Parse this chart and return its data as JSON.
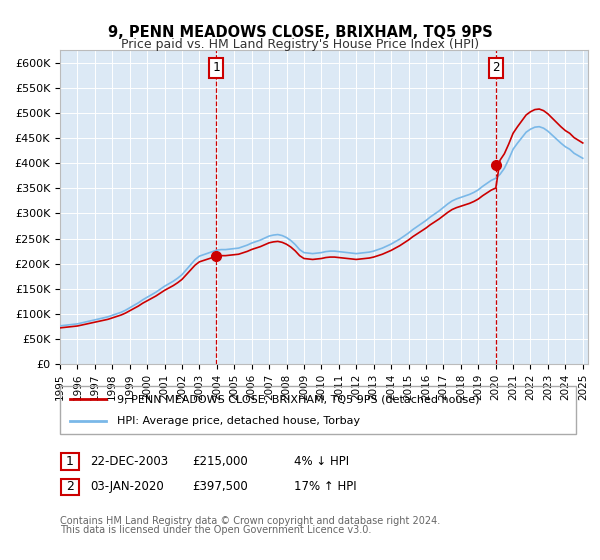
{
  "title": "9, PENN MEADOWS CLOSE, BRIXHAM, TQ5 9PS",
  "subtitle": "Price paid vs. HM Land Registry's House Price Index (HPI)",
  "ylim": [
    0,
    625000
  ],
  "yticks": [
    0,
    50000,
    100000,
    150000,
    200000,
    250000,
    300000,
    350000,
    400000,
    450000,
    500000,
    550000,
    600000
  ],
  "ytick_labels": [
    "£0",
    "£50K",
    "£100K",
    "£150K",
    "£200K",
    "£250K",
    "£300K",
    "£350K",
    "£400K",
    "£450K",
    "£500K",
    "£550K",
    "£600K"
  ],
  "plot_bg_color": "#dce9f5",
  "legend_line1": "9, PENN MEADOWS CLOSE, BRIXHAM, TQ5 9PS (detached house)",
  "legend_line2": "HPI: Average price, detached house, Torbay",
  "marker1_label": "1",
  "marker1_price": 215000,
  "marker1_x": 2003.96,
  "marker1_text1": "22-DEC-2003",
  "marker1_text2": "£215,000",
  "marker1_text3": "4% ↓ HPI",
  "marker2_label": "2",
  "marker2_price": 397500,
  "marker2_x": 2020.01,
  "marker2_text1": "03-JAN-2020",
  "marker2_text2": "£397,500",
  "marker2_text3": "17% ↑ HPI",
  "footer1": "Contains HM Land Registry data © Crown copyright and database right 2024.",
  "footer2": "This data is licensed under the Open Government Licence v3.0.",
  "hpi_color": "#7ab8e8",
  "price_color": "#cc0000",
  "marker_color": "#cc0000",
  "grid_color": "#ffffff",
  "hpi_years": [
    1995.0,
    1995.25,
    1995.5,
    1995.75,
    1996.0,
    1996.25,
    1996.5,
    1996.75,
    1997.0,
    1997.25,
    1997.5,
    1997.75,
    1998.0,
    1998.25,
    1998.5,
    1998.75,
    1999.0,
    1999.25,
    1999.5,
    1999.75,
    2000.0,
    2000.25,
    2000.5,
    2000.75,
    2001.0,
    2001.25,
    2001.5,
    2001.75,
    2002.0,
    2002.25,
    2002.5,
    2002.75,
    2003.0,
    2003.25,
    2003.5,
    2003.75,
    2004.0,
    2004.25,
    2004.5,
    2004.75,
    2005.0,
    2005.25,
    2005.5,
    2005.75,
    2006.0,
    2006.25,
    2006.5,
    2006.75,
    2007.0,
    2007.25,
    2007.5,
    2007.75,
    2008.0,
    2008.25,
    2008.5,
    2008.75,
    2009.0,
    2009.25,
    2009.5,
    2009.75,
    2010.0,
    2010.25,
    2010.5,
    2010.75,
    2011.0,
    2011.25,
    2011.5,
    2011.75,
    2012.0,
    2012.25,
    2012.5,
    2012.75,
    2013.0,
    2013.25,
    2013.5,
    2013.75,
    2014.0,
    2014.25,
    2014.5,
    2014.75,
    2015.0,
    2015.25,
    2015.5,
    2015.75,
    2016.0,
    2016.25,
    2016.5,
    2016.75,
    2017.0,
    2017.25,
    2017.5,
    2017.75,
    2018.0,
    2018.25,
    2018.5,
    2018.75,
    2019.0,
    2019.25,
    2019.5,
    2019.75,
    2020.0,
    2020.25,
    2020.5,
    2020.75,
    2021.0,
    2021.25,
    2021.5,
    2021.75,
    2022.0,
    2022.25,
    2022.5,
    2022.75,
    2023.0,
    2023.25,
    2023.5,
    2023.75,
    2024.0,
    2024.25,
    2024.5,
    2024.75,
    2025.0
  ],
  "hpi_values": [
    76000,
    77000,
    78000,
    79000,
    80000,
    82000,
    84000,
    86000,
    88000,
    90000,
    92000,
    94000,
    97000,
    100000,
    103000,
    107000,
    112000,
    117000,
    122000,
    128000,
    133000,
    138000,
    143000,
    149000,
    155000,
    160000,
    165000,
    171000,
    178000,
    188000,
    198000,
    208000,
    215000,
    218000,
    221000,
    224000,
    227000,
    228000,
    228000,
    229000,
    230000,
    231000,
    234000,
    237000,
    241000,
    244000,
    247000,
    251000,
    255000,
    257000,
    258000,
    256000,
    252000,
    246000,
    238000,
    228000,
    222000,
    221000,
    220000,
    221000,
    222000,
    224000,
    225000,
    225000,
    224000,
    223000,
    222000,
    221000,
    220000,
    221000,
    222000,
    223000,
    225000,
    228000,
    231000,
    235000,
    239000,
    244000,
    249000,
    255000,
    261000,
    268000,
    274000,
    280000,
    286000,
    293000,
    299000,
    305000,
    312000,
    319000,
    325000,
    329000,
    332000,
    335000,
    338000,
    342000,
    347000,
    354000,
    360000,
    366000,
    370000,
    378000,
    390000,
    408000,
    428000,
    440000,
    451000,
    462000,
    468000,
    472000,
    473000,
    470000,
    464000,
    456000,
    448000,
    440000,
    433000,
    428000,
    420000,
    415000,
    410000
  ],
  "red_years": [
    1995.0,
    1995.25,
    1995.5,
    1995.75,
    1996.0,
    1996.25,
    1996.5,
    1996.75,
    1997.0,
    1997.25,
    1997.5,
    1997.75,
    1998.0,
    1998.25,
    1998.5,
    1998.75,
    1999.0,
    1999.25,
    1999.5,
    1999.75,
    2000.0,
    2000.25,
    2000.5,
    2000.75,
    2001.0,
    2001.25,
    2001.5,
    2001.75,
    2002.0,
    2002.25,
    2002.5,
    2002.75,
    2003.0,
    2003.25,
    2003.5,
    2003.75,
    2003.96,
    2004.25,
    2004.5,
    2004.75,
    2005.0,
    2005.25,
    2005.5,
    2005.75,
    2006.0,
    2006.25,
    2006.5,
    2006.75,
    2007.0,
    2007.25,
    2007.5,
    2007.75,
    2008.0,
    2008.25,
    2008.5,
    2008.75,
    2009.0,
    2009.25,
    2009.5,
    2009.75,
    2010.0,
    2010.25,
    2010.5,
    2010.75,
    2011.0,
    2011.25,
    2011.5,
    2011.75,
    2012.0,
    2012.25,
    2012.5,
    2012.75,
    2013.0,
    2013.25,
    2013.5,
    2013.75,
    2014.0,
    2014.25,
    2014.5,
    2014.75,
    2015.0,
    2015.25,
    2015.5,
    2015.75,
    2016.0,
    2016.25,
    2016.5,
    2016.75,
    2017.0,
    2017.25,
    2017.5,
    2017.75,
    2018.0,
    2018.25,
    2018.5,
    2018.75,
    2019.0,
    2019.25,
    2019.5,
    2019.75,
    2020.01,
    2020.25,
    2020.5,
    2020.75,
    2021.0,
    2021.25,
    2021.5,
    2021.75,
    2022.0,
    2022.25,
    2022.5,
    2022.75,
    2023.0,
    2023.25,
    2023.5,
    2023.75,
    2024.0,
    2024.25,
    2024.5,
    2024.75,
    2025.0
  ]
}
